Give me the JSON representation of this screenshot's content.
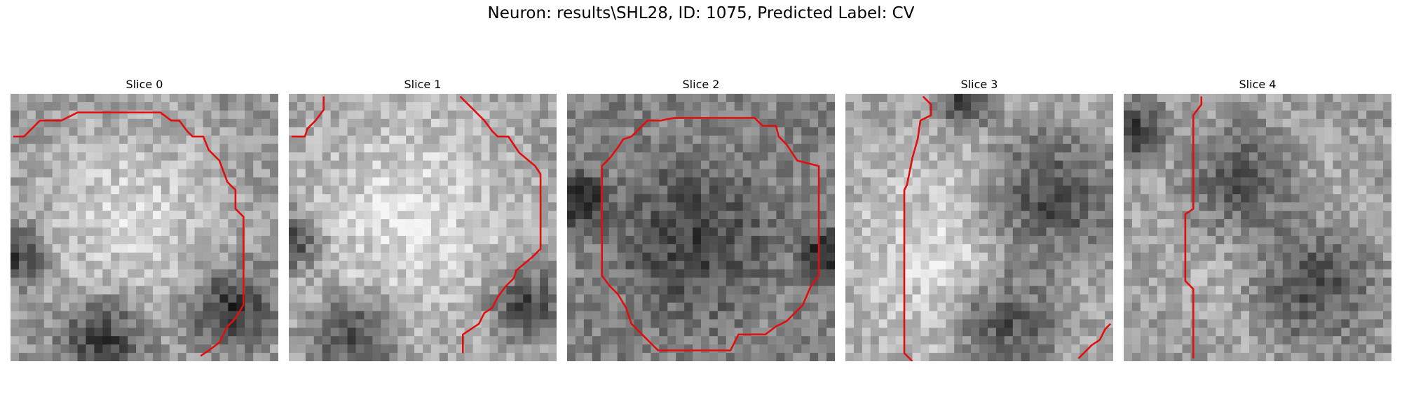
{
  "figure": {
    "title": "Neuron: results\\SHL28, ID: 1075, Predicted Label: CV",
    "contour_color": "#e01010"
  },
  "panels": [
    {
      "label": "Slice 0",
      "contours": [
        [
          [
            0.01,
            0.16
          ],
          [
            0.05,
            0.16
          ],
          [
            0.08,
            0.13
          ],
          [
            0.11,
            0.1
          ],
          [
            0.19,
            0.1
          ],
          [
            0.25,
            0.07
          ],
          [
            0.56,
            0.07
          ],
          [
            0.6,
            0.1
          ],
          [
            0.63,
            0.1
          ],
          [
            0.66,
            0.14
          ],
          [
            0.68,
            0.16
          ],
          [
            0.72,
            0.16
          ],
          [
            0.74,
            0.21
          ],
          [
            0.78,
            0.25
          ],
          [
            0.81,
            0.33
          ],
          [
            0.84,
            0.36
          ],
          [
            0.84,
            0.43
          ],
          [
            0.87,
            0.46
          ],
          [
            0.87,
            0.79
          ],
          [
            0.84,
            0.84
          ],
          [
            0.81,
            0.87
          ],
          [
            0.78,
            0.93
          ],
          [
            0.74,
            0.96
          ],
          [
            0.71,
            0.98
          ]
        ]
      ]
    },
    {
      "label": "Slice 1",
      "contours": [
        [
          [
            0.01,
            0.16
          ],
          [
            0.06,
            0.16
          ],
          [
            0.07,
            0.13
          ],
          [
            0.1,
            0.1
          ],
          [
            0.13,
            0.06
          ],
          [
            0.13,
            0.01
          ]
        ],
        [
          [
            0.64,
            0.01
          ],
          [
            0.68,
            0.05
          ],
          [
            0.73,
            0.1
          ],
          [
            0.76,
            0.14
          ],
          [
            0.78,
            0.16
          ],
          [
            0.82,
            0.16
          ],
          [
            0.86,
            0.22
          ],
          [
            0.92,
            0.27
          ],
          [
            0.94,
            0.3
          ],
          [
            0.94,
            0.58
          ],
          [
            0.91,
            0.61
          ],
          [
            0.85,
            0.66
          ],
          [
            0.84,
            0.69
          ],
          [
            0.81,
            0.72
          ],
          [
            0.78,
            0.76
          ],
          [
            0.76,
            0.8
          ],
          [
            0.73,
            0.82
          ],
          [
            0.71,
            0.86
          ],
          [
            0.68,
            0.88
          ],
          [
            0.65,
            0.9
          ],
          [
            0.65,
            0.97
          ]
        ]
      ]
    },
    {
      "label": "Slice 2",
      "contours": [
        [
          [
            0.4,
            0.09
          ],
          [
            0.7,
            0.09
          ],
          [
            0.73,
            0.12
          ],
          [
            0.78,
            0.12
          ],
          [
            0.79,
            0.16
          ],
          [
            0.82,
            0.19
          ],
          [
            0.86,
            0.25
          ],
          [
            0.94,
            0.27
          ],
          [
            0.94,
            0.68
          ],
          [
            0.91,
            0.72
          ],
          [
            0.88,
            0.79
          ],
          [
            0.85,
            0.82
          ],
          [
            0.82,
            0.85
          ],
          [
            0.78,
            0.87
          ],
          [
            0.74,
            0.9
          ],
          [
            0.64,
            0.9
          ],
          [
            0.61,
            0.96
          ],
          [
            0.34,
            0.96
          ],
          [
            0.31,
            0.93
          ],
          [
            0.28,
            0.9
          ],
          [
            0.24,
            0.86
          ],
          [
            0.22,
            0.8
          ],
          [
            0.19,
            0.75
          ],
          [
            0.16,
            0.72
          ],
          [
            0.13,
            0.68
          ],
          [
            0.13,
            0.27
          ],
          [
            0.16,
            0.24
          ],
          [
            0.19,
            0.2
          ],
          [
            0.21,
            0.17
          ],
          [
            0.24,
            0.16
          ],
          [
            0.27,
            0.13
          ],
          [
            0.3,
            0.1
          ],
          [
            0.35,
            0.1
          ],
          [
            0.4,
            0.09
          ]
        ]
      ]
    },
    {
      "label": "Slice 3",
      "contours": [
        [
          [
            0.29,
            0.01
          ],
          [
            0.32,
            0.04
          ],
          [
            0.32,
            0.08
          ],
          [
            0.28,
            0.1
          ],
          [
            0.27,
            0.17
          ],
          [
            0.25,
            0.24
          ],
          [
            0.23,
            0.34
          ],
          [
            0.22,
            0.36
          ],
          [
            0.22,
            0.97
          ],
          [
            0.25,
            1.0
          ]
        ],
        [
          [
            0.87,
            0.99
          ],
          [
            0.9,
            0.96
          ],
          [
            0.92,
            0.94
          ],
          [
            0.95,
            0.92
          ],
          [
            0.97,
            0.88
          ],
          [
            0.99,
            0.86
          ]
        ]
      ]
    },
    {
      "label": "Slice 4",
      "contours": [
        [
          [
            0.29,
            0.01
          ],
          [
            0.29,
            0.04
          ],
          [
            0.26,
            0.08
          ],
          [
            0.26,
            0.43
          ],
          [
            0.23,
            0.45
          ],
          [
            0.23,
            0.7
          ],
          [
            0.26,
            0.73
          ],
          [
            0.26,
            0.99
          ]
        ]
      ]
    }
  ]
}
